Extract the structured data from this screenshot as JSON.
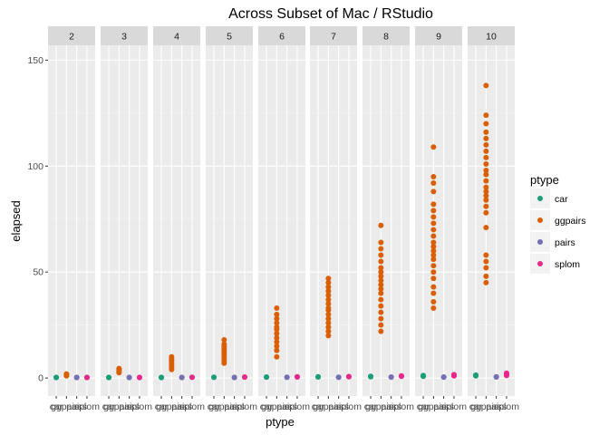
{
  "chart_data": {
    "type": "scatter",
    "title": "Across Subset of Mac / RStudio",
    "xlabel": "ptype",
    "ylabel": "elapsed",
    "ylim": [
      -8.5,
      157
    ],
    "yticks": [
      0,
      50,
      100,
      150
    ],
    "categories": [
      "car",
      "ggpairs",
      "pairs",
      "splom"
    ],
    "x_tick_labels": [
      "car",
      "ggpairs",
      "pairs",
      "splom"
    ],
    "facets": [
      "2",
      "3",
      "4",
      "5",
      "6",
      "7",
      "8",
      "9",
      "10"
    ],
    "grid": true,
    "legend": {
      "title": "ptype",
      "position": "right",
      "entries": [
        {
          "label": "car",
          "color": "#1b9e77"
        },
        {
          "label": "ggpairs",
          "color": "#d95f02"
        },
        {
          "label": "pairs",
          "color": "#7570b3"
        },
        {
          "label": "splom",
          "color": "#e7298a"
        }
      ]
    },
    "panels": [
      {
        "facet": "2",
        "points": {
          "car": [
            0.2,
            0.3
          ],
          "ggpairs": [
            1.0,
            1.3,
            1.6,
            1.9
          ],
          "pairs": [
            0.2,
            0.3
          ],
          "splom": [
            0.2,
            0.3
          ]
        }
      },
      {
        "facet": "3",
        "points": {
          "car": [
            0.2,
            0.3
          ],
          "ggpairs": [
            2.5,
            3.0,
            3.5,
            4.0,
            4.5
          ],
          "pairs": [
            0.2,
            0.3
          ],
          "splom": [
            0.2,
            0.3
          ]
        }
      },
      {
        "facet": "4",
        "points": {
          "car": [
            0.2,
            0.3
          ],
          "ggpairs": [
            4,
            5,
            6,
            7,
            8,
            9,
            10
          ],
          "pairs": [
            0.2,
            0.3
          ],
          "splom": [
            0.3,
            0.4
          ]
        }
      },
      {
        "facet": "5",
        "points": {
          "car": [
            0.3,
            0.4
          ],
          "ggpairs": [
            7,
            8,
            9,
            10,
            11,
            12,
            13,
            14,
            15,
            16,
            18
          ],
          "pairs": [
            0.2,
            0.3
          ],
          "splom": [
            0.4,
            0.5
          ]
        }
      },
      {
        "facet": "6",
        "points": {
          "car": [
            0.4,
            0.5
          ],
          "ggpairs": [
            10,
            13,
            15,
            17,
            19,
            21,
            23,
            24,
            26,
            28,
            30,
            33
          ],
          "pairs": [
            0.3,
            0.4
          ],
          "splom": [
            0.5,
            0.6
          ]
        }
      },
      {
        "facet": "7",
        "points": {
          "car": [
            0.5,
            0.6
          ],
          "ggpairs": [
            20,
            22,
            24,
            26,
            28,
            30,
            32,
            33,
            35,
            37,
            39,
            41,
            43,
            45,
            47
          ],
          "pairs": [
            0.3,
            0.4
          ],
          "splom": [
            0.6,
            0.7
          ]
        }
      },
      {
        "facet": "8",
        "points": {
          "car": [
            0.6,
            0.8
          ],
          "ggpairs": [
            22,
            25,
            28,
            31,
            34,
            37,
            40,
            42,
            44,
            46,
            48,
            50,
            52,
            55,
            58,
            61,
            64,
            72
          ],
          "pairs": [
            0.4,
            0.5
          ],
          "splom": [
            0.8,
            1.0
          ]
        }
      },
      {
        "facet": "9",
        "points": {
          "car": [
            0.8,
            1.0,
            1.2
          ],
          "ggpairs": [
            33,
            36,
            40,
            43,
            47,
            50,
            53,
            56,
            58,
            60,
            62,
            64,
            67,
            70,
            73,
            76,
            79,
            82,
            88,
            92,
            95,
            109
          ],
          "pairs": [
            0.4,
            0.5
          ],
          "splom": [
            1.0,
            1.3,
            1.6
          ]
        }
      },
      {
        "facet": "10",
        "points": {
          "car": [
            1.0,
            1.2,
            1.4
          ],
          "ggpairs": [
            45,
            48,
            52,
            55,
            58,
            71,
            78,
            81,
            84,
            86,
            88,
            90,
            93,
            96,
            98,
            101,
            104,
            107,
            110,
            113,
            116,
            120,
            124,
            138
          ],
          "pairs": [
            0.5,
            0.6
          ],
          "splom": [
            1.2,
            1.6,
            2.0,
            2.3
          ]
        }
      }
    ]
  }
}
